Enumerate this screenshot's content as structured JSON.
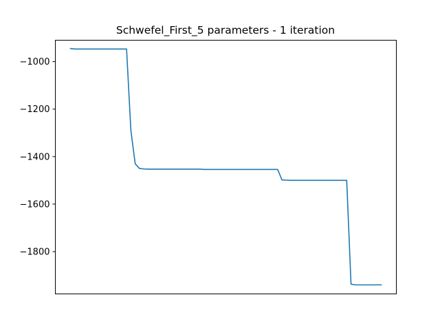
{
  "chart_data": {
    "type": "line",
    "title": "Schwefel_First_5 parameters - 1 iteration",
    "xlabel": "",
    "ylabel": "",
    "x_ticks_visible": false,
    "grid": false,
    "legend": "none",
    "ylim": [
      -1978,
      -910
    ],
    "yticks": [
      -1000,
      -1200,
      -1400,
      -1600,
      -1800
    ],
    "ytick_labels": [
      "−1000",
      "−1200",
      "−1400",
      "−1600",
      "−1800"
    ],
    "xlim": [
      -3.5,
      75.5
    ],
    "series": [
      {
        "color": "#1f77b4",
        "x": [
          0,
          1,
          2,
          3,
          4,
          5,
          6,
          7,
          8,
          9,
          10,
          11,
          12,
          13,
          14,
          15,
          16,
          17,
          18,
          19,
          20,
          21,
          22,
          23,
          24,
          25,
          26,
          27,
          28,
          29,
          30,
          31,
          32,
          33,
          34,
          35,
          36,
          37,
          38,
          39,
          40,
          41,
          42,
          43,
          44,
          45,
          46,
          47,
          48,
          49,
          50,
          51,
          52,
          53,
          54,
          55,
          56,
          57,
          58,
          59,
          60,
          61,
          62,
          63,
          64,
          65,
          66,
          67,
          68,
          69,
          70,
          71,
          72
        ],
        "values": [
          -945,
          -947,
          -947,
          -947,
          -947,
          -947,
          -947,
          -947,
          -947,
          -947,
          -947,
          -947,
          -947,
          -947,
          -1290,
          -1430,
          -1450,
          -1452,
          -1453,
          -1453,
          -1453,
          -1453,
          -1453,
          -1453,
          -1453,
          -1453,
          -1453,
          -1453,
          -1453,
          -1453,
          -1453,
          -1454,
          -1454,
          -1454,
          -1454,
          -1454,
          -1454,
          -1454,
          -1454,
          -1454,
          -1454,
          -1454,
          -1454,
          -1454,
          -1454,
          -1454,
          -1454,
          -1454,
          -1454,
          -1498,
          -1499,
          -1500,
          -1500,
          -1500,
          -1500,
          -1500,
          -1500,
          -1500,
          -1500,
          -1500,
          -1500,
          -1500,
          -1500,
          -1500,
          -1500,
          -1937,
          -1940,
          -1940,
          -1940,
          -1940,
          -1940,
          -1940,
          -1940
        ]
      }
    ]
  }
}
